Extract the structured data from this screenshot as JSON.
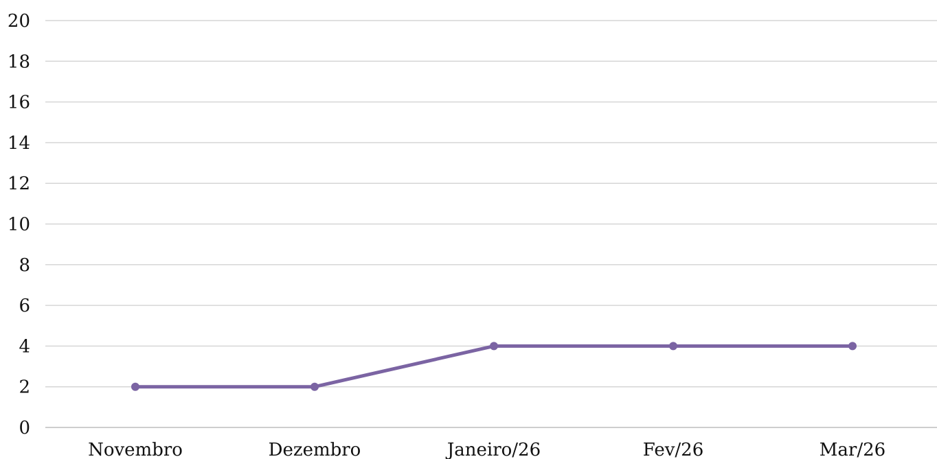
{
  "chart_data": {
    "type": "line",
    "categories": [
      "Novembro",
      "Dezembro",
      "Janeiro/26",
      "Fev/26",
      "Mar/26"
    ],
    "series": [
      {
        "values": [
          2,
          2,
          4,
          4,
          4
        ]
      }
    ],
    "title": "",
    "xlabel": "",
    "ylabel": "",
    "ylim": [
      0,
      20
    ],
    "yticks": [
      "0",
      "2",
      "4",
      "6",
      "8",
      "10",
      "12",
      "14",
      "16",
      "18",
      "20"
    ],
    "grid": true,
    "legend": "none",
    "colors": {
      "series": "#7b64a3",
      "grid": "#d6d6d6",
      "axis_text": "#111111"
    }
  }
}
